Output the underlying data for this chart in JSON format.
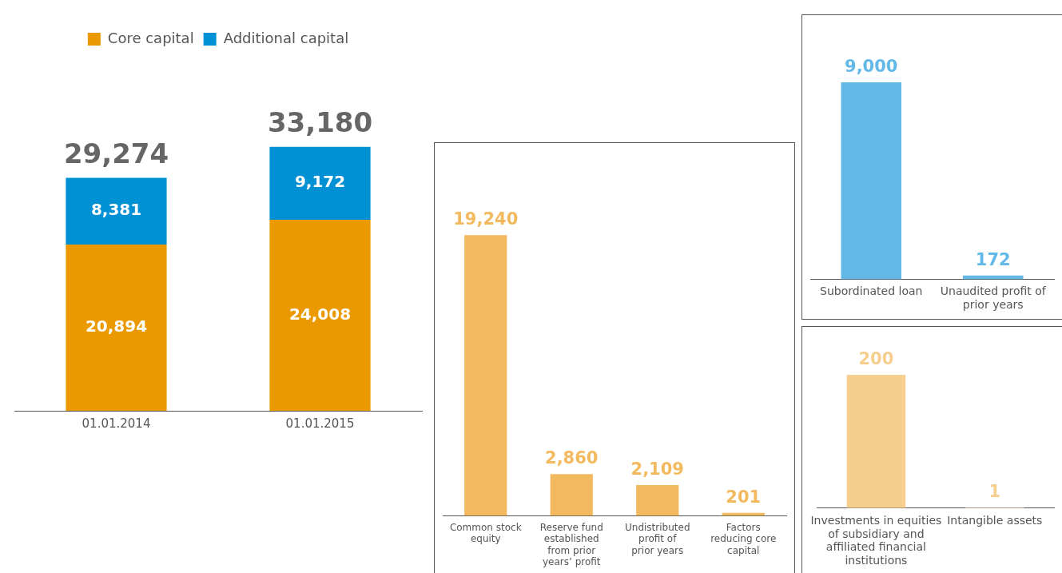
{
  "chart_data": [
    {
      "type": "bar",
      "stacked": true,
      "categories": [
        "01.01.2014",
        "01.01.2015"
      ],
      "series": [
        {
          "name": "Core capital",
          "color": "#ea9a00",
          "values": [
            20894,
            24008
          ],
          "value_labels": [
            "20,894",
            "24,008"
          ]
        },
        {
          "name": "Additional capital",
          "color": "#0090d4",
          "values": [
            8381,
            9172
          ],
          "value_labels": [
            "8,381",
            "9,172"
          ]
        }
      ],
      "totals": [
        "29,274",
        "33,180"
      ],
      "legend": "top"
    },
    {
      "type": "bar",
      "categories": [
        "Common stock equity",
        "Reserve fund established from prior years’ profit",
        "Undistributed profit of prior years",
        "Factors reducing core capital"
      ],
      "values": [
        19240,
        2860,
        2109,
        201
      ],
      "value_labels": [
        "19,240",
        "2,860",
        "2,109",
        "201"
      ],
      "color": "#f2b95e"
    },
    {
      "type": "bar",
      "categories": [
        "Subordinated loan",
        "Unaudited profit of prior years"
      ],
      "values": [
        9000,
        172
      ],
      "value_labels": [
        "9,000",
        "172"
      ],
      "color": "#62b9e7"
    },
    {
      "type": "bar",
      "categories": [
        "Investments in equities of subsidiary and affiliated financial institutions",
        "Intangible assets"
      ],
      "values": [
        200,
        1
      ],
      "color": "#f6cf8e",
      "data_labels": true
    }
  ]
}
